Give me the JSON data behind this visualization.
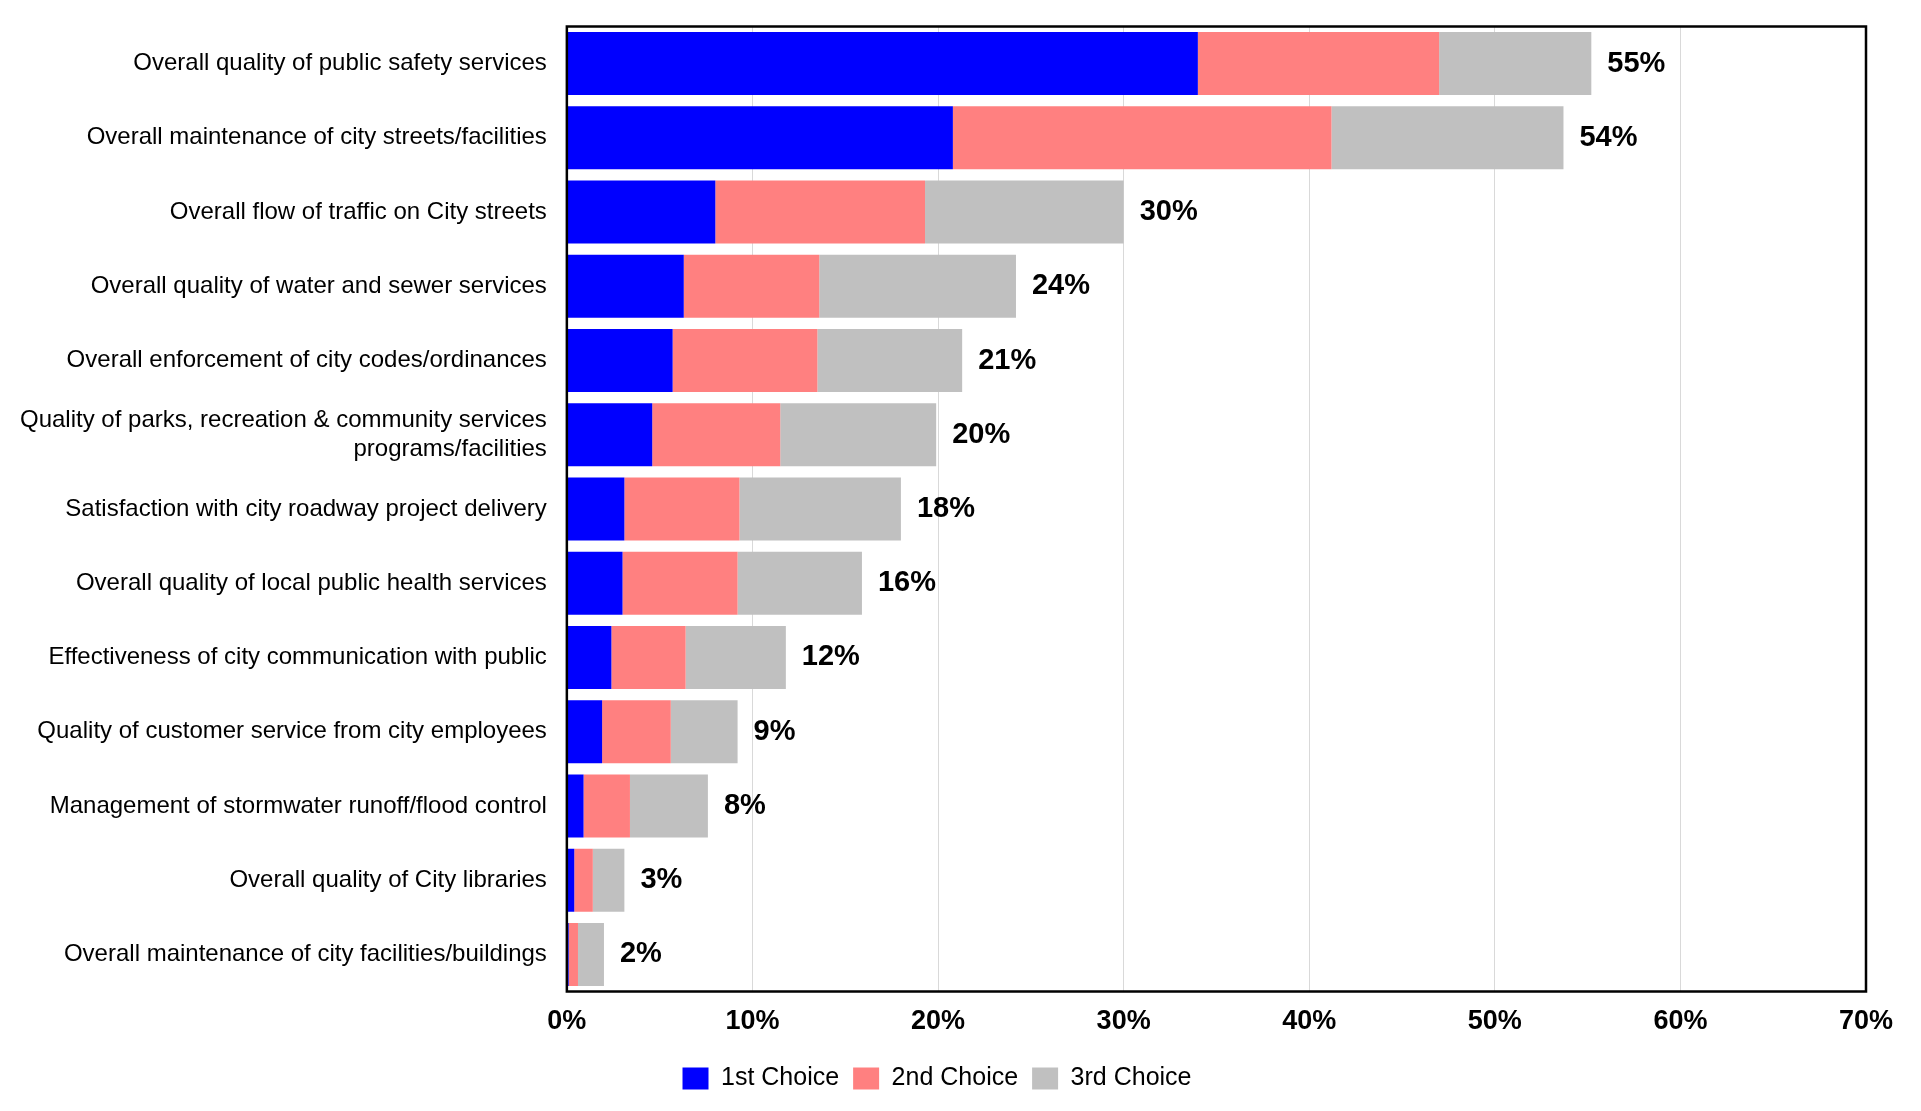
{
  "chart_data": {
    "type": "bar",
    "orientation": "horizontal",
    "stacked": true,
    "categories": [
      "Overall quality of public safety services",
      "Overall maintenance of city streets/facilities",
      "Overall flow of traffic on City streets",
      "Overall quality of water and sewer services",
      "Overall enforcement of city codes/ordinances",
      "Quality of parks, recreation & community services programs/facilities",
      "Satisfaction with city roadway project delivery",
      "Overall quality of local public health services",
      "Effectiveness of city communication with public",
      "Quality of customer service from city employees",
      "Management of stormwater runoff/flood control",
      "Overall quality of City libraries",
      "Overall maintenance of city facilities/buildings"
    ],
    "series": [
      {
        "name": "1st Choice",
        "color": "#0000ff",
        "values": [
          34,
          20.8,
          8,
          6.3,
          5.7,
          4.6,
          3.1,
          3,
          2.4,
          1.9,
          0.9,
          0.4,
          0.1
        ]
      },
      {
        "name": "2nd Choice",
        "color": "#ff8080",
        "values": [
          13,
          20.4,
          11.3,
          7.3,
          7.8,
          6.9,
          6.2,
          6.2,
          4,
          3.7,
          2.5,
          1,
          0.5
        ]
      },
      {
        "name": "3rd Choice",
        "color": "#c0c0c0",
        "values": [
          8.2,
          12.5,
          10.7,
          10.6,
          7.8,
          8.4,
          8.7,
          6.7,
          5.4,
          3.6,
          4.2,
          1.7,
          1.4
        ]
      }
    ],
    "totals": [
      "55%",
      "54%",
      "30%",
      "24%",
      "21%",
      "20%",
      "18%",
      "16%",
      "12%",
      "9%",
      "8%",
      "3%",
      "2%"
    ],
    "xlim": [
      0,
      70
    ],
    "xticks": [
      {
        "value": 0,
        "label": "0%"
      },
      {
        "value": 10,
        "label": "10%"
      },
      {
        "value": 20,
        "label": "20%"
      },
      {
        "value": 30,
        "label": "30%"
      },
      {
        "value": 40,
        "label": "40%"
      },
      {
        "value": 50,
        "label": "50%"
      },
      {
        "value": 60,
        "label": "60%"
      },
      {
        "value": 70,
        "label": "70%"
      }
    ],
    "grid": "x",
    "legend": "bottom"
  }
}
